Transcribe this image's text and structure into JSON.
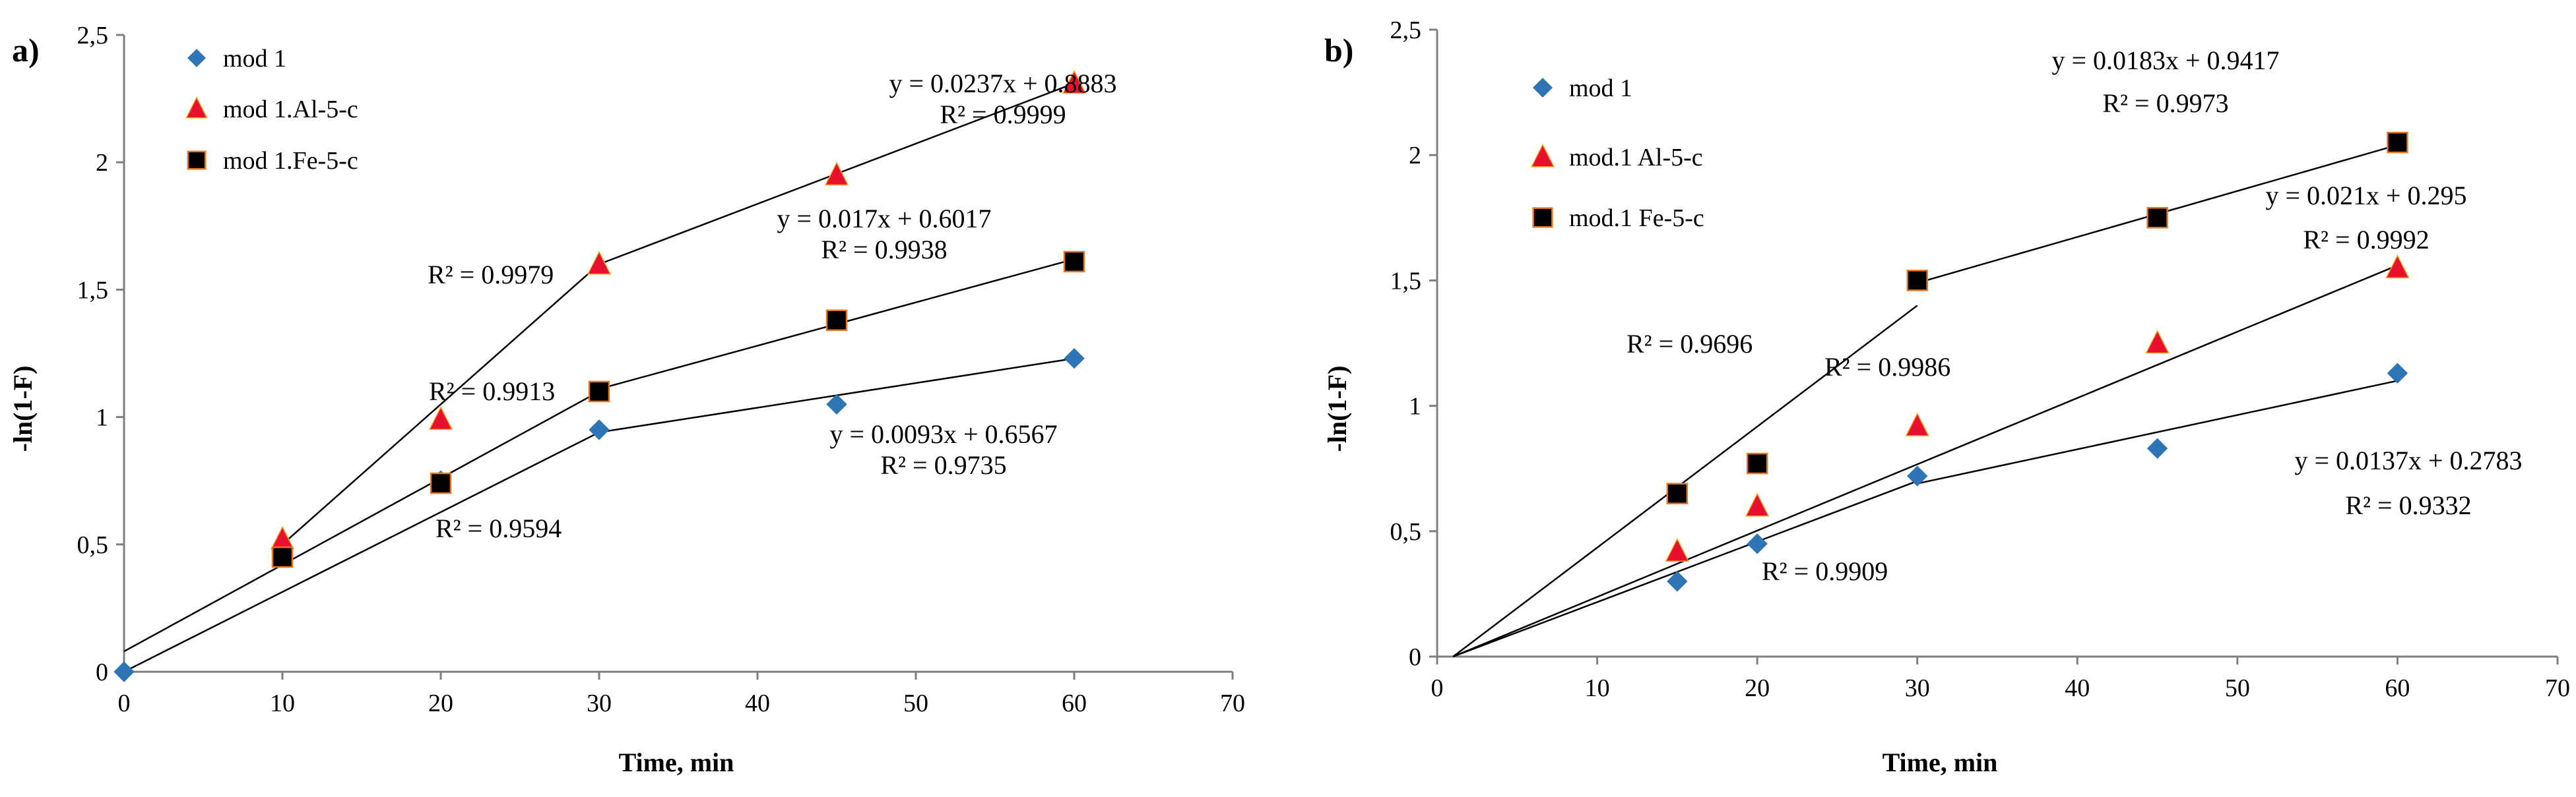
{
  "chart_data": [
    {
      "panel": "a)",
      "type": "scatter",
      "xlabel": "Time, min",
      "ylabel": "-ln(1-F)",
      "xlim": [
        0,
        70
      ],
      "ylim": [
        0,
        2.5
      ],
      "xticks": [
        0,
        10,
        20,
        30,
        40,
        50,
        60,
        70
      ],
      "yticks": [
        0,
        0.5,
        1,
        1.5,
        2,
        2.5
      ],
      "x_tick_labels": [
        "0",
        "10",
        "20",
        "30",
        "40",
        "50",
        "60",
        "70"
      ],
      "y_tick_labels": [
        "0",
        "0,5",
        "1",
        "1,5",
        "2",
        "2,5"
      ],
      "grid": false,
      "legend_position": "top-left",
      "series": [
        {
          "name": "mod 1",
          "marker": "diamond",
          "color": "#2e75b6",
          "x": [
            0,
            10,
            20,
            30,
            45,
            60
          ],
          "y": [
            0,
            0.47,
            0.75,
            0.95,
            1.05,
            1.23
          ]
        },
        {
          "name": "mod 1.Al-5-c",
          "marker": "triangle",
          "color": "#e8102e",
          "x": [
            10,
            20,
            30,
            45,
            60
          ],
          "y": [
            0.52,
            0.99,
            1.6,
            1.95,
            2.31
          ]
        },
        {
          "name": "mod 1.Fe-5-c",
          "marker": "square",
          "color": "#000000",
          "x": [
            10,
            20,
            30,
            45,
            60
          ],
          "y": [
            0.45,
            0.74,
            1.1,
            1.38,
            1.61
          ]
        }
      ],
      "fit_lines": [
        {
          "x": [
            10,
            30
          ],
          "y": [
            0.5,
            1.6
          ]
        },
        {
          "x": [
            30,
            60
          ],
          "y": [
            1.6,
            2.31
          ]
        },
        {
          "x": [
            0,
            30
          ],
          "y": [
            0.08,
            1.1
          ]
        },
        {
          "x": [
            30,
            60
          ],
          "y": [
            1.11,
            1.62
          ]
        },
        {
          "x": [
            0,
            30
          ],
          "y": [
            0.0,
            0.94
          ]
        },
        {
          "x": [
            30,
            60
          ],
          "y": [
            0.94,
            1.23
          ]
        }
      ],
      "annotations": [
        {
          "id": "a-eq-al",
          "lines": [
            "y = 0.0237x + 0.8883",
            "R² = 0.9999"
          ]
        },
        {
          "id": "a-r2-al-early",
          "lines": [
            "R² = 0.9979"
          ]
        },
        {
          "id": "a-eq-fe",
          "lines": [
            "y = 0.017x + 0.6017",
            "R² = 0.9938"
          ]
        },
        {
          "id": "a-r2-fe-early",
          "lines": [
            "R² = 0.9913"
          ]
        },
        {
          "id": "a-eq-mod1",
          "lines": [
            "y = 0.0093x + 0.6567",
            "R² = 0.9735"
          ]
        },
        {
          "id": "a-r2-mod1-early",
          "lines": [
            "R² = 0.9594"
          ]
        }
      ]
    },
    {
      "panel": "b)",
      "type": "scatter",
      "xlabel": "Time, min",
      "ylabel": "-ln(1-F)",
      "xlim": [
        0,
        70
      ],
      "ylim": [
        0,
        2.5
      ],
      "xticks": [
        0,
        10,
        20,
        30,
        40,
        50,
        60,
        70
      ],
      "yticks": [
        0,
        0.5,
        1,
        1.5,
        2,
        2.5
      ],
      "x_tick_labels": [
        "0",
        "10",
        "20",
        "30",
        "40",
        "50",
        "60",
        "70"
      ],
      "y_tick_labels": [
        "0",
        "0,5",
        "1",
        "1,5",
        "2",
        "2,5"
      ],
      "grid": false,
      "legend_position": "top-left",
      "series": [
        {
          "name": "mod 1",
          "marker": "diamond",
          "color": "#2e75b6",
          "x": [
            15,
            20,
            30,
            45,
            60
          ],
          "y": [
            0.3,
            0.45,
            0.72,
            0.83,
            1.13
          ]
        },
        {
          "name": "mod.1 Al-5-c",
          "marker": "triangle",
          "color": "#e8102e",
          "x": [
            15,
            20,
            30,
            45,
            60
          ],
          "y": [
            0.42,
            0.6,
            0.92,
            1.25,
            1.55
          ]
        },
        {
          "name": "mod.1 Fe-5-c",
          "marker": "square",
          "color": "#000000",
          "x": [
            15,
            20,
            30,
            45,
            60
          ],
          "y": [
            0.65,
            0.77,
            1.5,
            1.75,
            2.05
          ]
        }
      ],
      "fit_lines": [
        {
          "x": [
            1,
            30
          ],
          "y": [
            0,
            1.4
          ]
        },
        {
          "x": [
            30,
            60
          ],
          "y": [
            1.49,
            2.04
          ]
        },
        {
          "x": [
            1,
            60
          ],
          "y": [
            0,
            1.56
          ]
        },
        {
          "x": [
            1,
            30
          ],
          "y": [
            0,
            0.7
          ]
        },
        {
          "x": [
            30,
            60
          ],
          "y": [
            0.69,
            1.1
          ]
        }
      ],
      "annotations": [
        {
          "id": "b-eq-fe",
          "lines": [
            "y = 0.0183x + 0.9417",
            "R² = 0.9973"
          ]
        },
        {
          "id": "b-eq-al",
          "lines": [
            "y = 0.021x + 0.295",
            "R² = 0.9992"
          ]
        },
        {
          "id": "b-r2-fe-early",
          "lines": [
            "R² = 0.9696"
          ]
        },
        {
          "id": "b-r2-al",
          "lines": [
            "R² = 0.9986"
          ]
        },
        {
          "id": "b-eq-mod1",
          "lines": [
            "y = 0.0137x + 0.2783",
            "R² = 0.9332"
          ]
        },
        {
          "id": "b-r2-mod1-early",
          "lines": [
            "R² = 0.9909"
          ]
        }
      ]
    }
  ]
}
